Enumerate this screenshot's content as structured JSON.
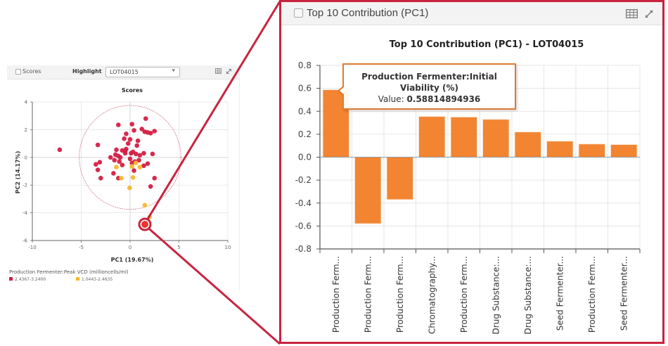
{
  "scores_panel": {
    "checkbox_label": "Scores",
    "highlight_label": "Highlight",
    "highlight_value": "LOT04015",
    "table_icon": "table-icon",
    "expand_icon": "expand-icon"
  },
  "contribution_panel": {
    "checkbox_label": "Top 10 Contribution (PC1)",
    "table_icon": "table-icon",
    "expand_icon": "expand-icon"
  },
  "tooltip": {
    "name": "Production Fermenter:Initial Viability (%)",
    "value_label": "Value:",
    "value": "0.58814894936"
  },
  "colors": {
    "accent": "#c8243f",
    "bar": "#f28432",
    "series_high": "#d41f45",
    "series_low": "#f5b82e"
  },
  "chart_data": [
    {
      "type": "scatter",
      "title": "Scores",
      "xlabel": "PC1 (19.67%)",
      "ylabel": "PC2 (14.17%)",
      "xlim": [
        -10,
        10
      ],
      "ylim": [
        -6,
        4
      ],
      "xticks": [
        "-10",
        "-5",
        "0",
        "5",
        "10"
      ],
      "yticks": [
        "-6",
        "-4",
        "-2",
        "0",
        "2",
        "4"
      ],
      "grid": true,
      "ellipse": {
        "cx": 0,
        "cy": 0,
        "rx": 5.2,
        "ry": 3.75
      },
      "legend_title": "Production Fermenter:Peak VCD (millioncells/ml)",
      "legend_position": "bottom-left",
      "highlighted_point": {
        "x": 1.4,
        "y": -4.85,
        "label": "LOT04015"
      },
      "series": [
        {
          "name": "2.4367-3.2400",
          "color": "#d41f45",
          "points": [
            [
              -7.2,
              0.55
            ],
            [
              -3.3,
              0.9
            ],
            [
              -1.2,
              2.35
            ],
            [
              0.2,
              2.4
            ],
            [
              1.6,
              2.8
            ],
            [
              -0.4,
              1.7
            ],
            [
              0.4,
              1.95
            ],
            [
              1.2,
              2.05
            ],
            [
              1.5,
              1.85
            ],
            [
              1.8,
              1.8
            ],
            [
              2.1,
              1.75
            ],
            [
              2.5,
              1.9
            ],
            [
              -0.6,
              1.35
            ],
            [
              0.0,
              1.3
            ],
            [
              -0.2,
              1.0
            ],
            [
              0.8,
              1.2
            ],
            [
              0.7,
              0.85
            ],
            [
              -1.4,
              0.55
            ],
            [
              -0.8,
              0.5
            ],
            [
              -1.5,
              0.2
            ],
            [
              -1.2,
              0.1
            ],
            [
              -1.0,
              0.0
            ],
            [
              -0.4,
              0.6
            ],
            [
              0.1,
              0.3
            ],
            [
              0.3,
              0.4
            ],
            [
              0.6,
              0.25
            ],
            [
              1.0,
              0.15
            ],
            [
              1.4,
              0.3
            ],
            [
              2.3,
              0.25
            ],
            [
              -0.5,
              0.45
            ],
            [
              -3.5,
              -0.5
            ],
            [
              -3.1,
              -0.35
            ],
            [
              -3.3,
              -0.9
            ],
            [
              -1.6,
              -0.2
            ],
            [
              -1.1,
              -0.3
            ],
            [
              -0.8,
              -0.55
            ],
            [
              0.2,
              -0.4
            ],
            [
              0.5,
              -0.3
            ],
            [
              0.9,
              -0.2
            ],
            [
              1.8,
              -0.45
            ],
            [
              1.4,
              -0.6
            ],
            [
              -1.7,
              -1.15
            ],
            [
              -3.0,
              -1.5
            ],
            [
              -1.2,
              -1.5
            ],
            [
              0.4,
              -0.95
            ],
            [
              2.5,
              -1.5
            ],
            [
              2.1,
              -2.1
            ],
            [
              -0.5,
              0.3
            ],
            [
              0.0,
              -0.1
            ],
            [
              -2.0,
              0.0
            ]
          ]
        },
        {
          "name": "1.0443-2.4635",
          "color": "#f5b82e",
          "points": [
            [
              -1.4,
              -0.7
            ],
            [
              0.6,
              -0.4
            ],
            [
              0.2,
              -0.65
            ],
            [
              1.0,
              -0.7
            ],
            [
              -0.9,
              -1.5
            ],
            [
              0.3,
              -1.45
            ],
            [
              -0.05,
              -2.2
            ],
            [
              1.5,
              -3.45
            ],
            [
              2.0,
              -4.3
            ]
          ]
        }
      ]
    },
    {
      "type": "bar",
      "title": "Top 10 Contribution (PC1) - LOT04015",
      "xlabel": "",
      "ylabel": "",
      "ylim": [
        -0.8,
        0.8
      ],
      "yticks": [
        "-0.8",
        "-0.6",
        "-0.4",
        "-0.2",
        "0.0",
        "0.2",
        "0.4",
        "0.6",
        "0.8"
      ],
      "grid": true,
      "categories": [
        "Production Ferm...",
        "Production Ferm...",
        "Production Ferm...",
        "Chromatography...",
        "Production Ferm...",
        "Drug Substance:...",
        "Drug Substance:...",
        "Seed Fermenter...",
        "Production Ferm...",
        "Seed Fermenter..."
      ],
      "values": [
        0.588,
        -0.58,
        -0.37,
        0.355,
        0.35,
        0.33,
        0.22,
        0.14,
        0.115,
        0.11
      ]
    }
  ]
}
